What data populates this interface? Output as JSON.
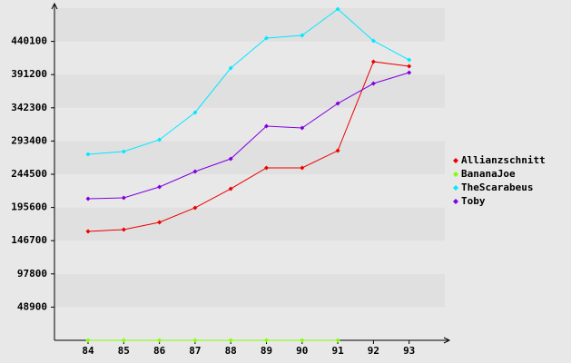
{
  "chart_data": {
    "type": "line",
    "categories": [
      "84",
      "85",
      "86",
      "87",
      "88",
      "89",
      "90",
      "91",
      "92",
      "93"
    ],
    "series": [
      {
        "name": "Allianzschnitt",
        "color": "#ee0000",
        "values": [
          160300,
          163000,
          173700,
          195100,
          223100,
          253900,
          253900,
          279200,
          410200,
          403500
        ]
      },
      {
        "name": "BananaJoe",
        "color": "#80ff00",
        "values": [
          0,
          0,
          0,
          0,
          0,
          0,
          0,
          0,
          null,
          null
        ]
      },
      {
        "name": "TheScarabeus",
        "color": "#00e8ff",
        "values": [
          273900,
          277900,
          295300,
          335400,
          400800,
          444900,
          448900,
          487700,
          440900,
          412800
        ]
      },
      {
        "name": "Toby",
        "color": "#8000e0",
        "values": [
          208400,
          209800,
          225800,
          248500,
          267200,
          315300,
          312600,
          348700,
          378100,
          394100
        ]
      }
    ],
    "ylim": [
      0,
      489000
    ],
    "yticks": [
      48900,
      97800,
      146700,
      195600,
      244500,
      293400,
      342300,
      391200,
      440100
    ],
    "grid": true,
    "legend": "right"
  }
}
